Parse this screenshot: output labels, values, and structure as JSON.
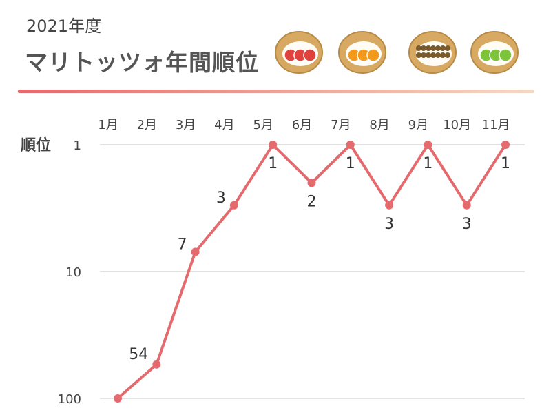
{
  "header": {
    "year_label": "2021年度",
    "title": "マリトッツォ年間順位",
    "rule_gradient": [
      "#e46a6d",
      "#f3d9c4"
    ]
  },
  "illustrations": [
    {
      "name": "strawberry-maritozzo-icon",
      "filling": "#e0423d"
    },
    {
      "name": "orange-maritozzo-icon",
      "filling": "#f39a1c"
    },
    {
      "name": "chestnut-maritozzo-icon",
      "filling": "#7a5a2a"
    },
    {
      "name": "kiwi-maritozzo-icon",
      "filling": "#7dc43a"
    }
  ],
  "chart_data": {
    "type": "line",
    "title": "",
    "ylabel": "順位",
    "yscale": "log",
    "yaxis_inverted": true,
    "ylim": [
      1,
      100
    ],
    "yticks": [
      "1",
      "10",
      "100"
    ],
    "categories": [
      "1月",
      "2月",
      "3月",
      "4月",
      "5月",
      "6月",
      "7月",
      "8月",
      "9月",
      "10月",
      "11月"
    ],
    "series": [
      {
        "values": [
          100,
          54,
          7,
          3,
          1,
          2,
          1,
          3,
          1,
          3,
          1
        ],
        "labels": [
          "",
          "54",
          "7",
          "3",
          "1",
          "2",
          "1",
          "3",
          "1",
          "3",
          "1"
        ],
        "color": "#e46a6d"
      }
    ],
    "grid": true,
    "gridColor": "#d9d9d9"
  }
}
